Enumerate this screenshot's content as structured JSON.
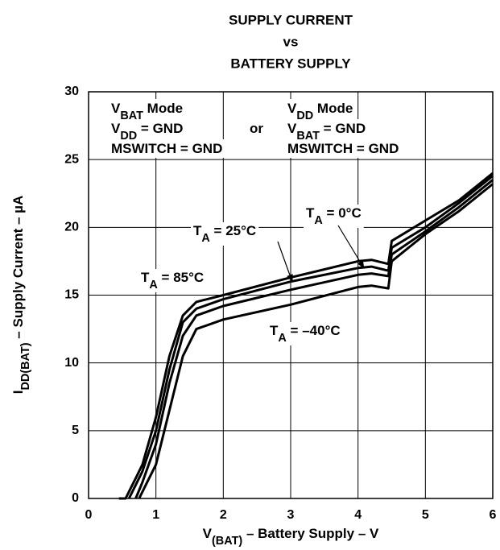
{
  "chart_data": {
    "type": "line",
    "title": [
      "SUPPLY CURRENT",
      "vs",
      "BATTERY SUPPLY"
    ],
    "xlabel": [
      "V",
      "(BAT)",
      " – Battery Supply – V"
    ],
    "ylabel": [
      "I",
      "DD(BAT)",
      " – Supply Current – µA"
    ],
    "xlim": [
      0,
      6
    ],
    "xticks": [
      0,
      1,
      2,
      3,
      4,
      5,
      6
    ],
    "ylim": [
      0,
      30
    ],
    "yticks": [
      0,
      5,
      10,
      15,
      20,
      25,
      30
    ],
    "grid": true,
    "color": "#000000",
    "annotations": [
      [
        "V",
        "BAT",
        " Mode"
      ],
      [
        "V",
        "DD",
        " = GND"
      ],
      [
        "MSWITCH = GND"
      ],
      [
        "or"
      ],
      [
        "V",
        "DD",
        " Mode"
      ],
      [
        "V",
        "BAT",
        " = GND"
      ],
      [
        "MSWITCH = GND"
      ]
    ],
    "series": [
      {
        "name": [
          "T",
          "A",
          " = 85°C"
        ],
        "color": "#000000",
        "x": [
          0.45,
          0.55,
          0.6,
          0.7,
          0.8,
          1.0,
          1.2,
          1.4,
          1.6,
          2.0,
          3.0,
          4.0,
          4.2,
          4.45,
          4.5,
          5.0,
          5.5,
          6.0
        ],
        "values": [
          0,
          0,
          0.5,
          1.5,
          2.5,
          6,
          10.5,
          13.5,
          14.5,
          15,
          16.3,
          17.5,
          17.6,
          17.3,
          19,
          20.5,
          22,
          24
        ]
      },
      {
        "name": [
          "T",
          "A",
          " = 25°C"
        ],
        "color": "#000000",
        "x": [
          0.6,
          0.7,
          0.8,
          1.0,
          1.2,
          1.4,
          1.6,
          2.0,
          3.0,
          4.0,
          4.2,
          4.45,
          4.5,
          5.0,
          5.5,
          6.0
        ],
        "values": [
          0,
          1,
          2,
          5,
          9.5,
          13,
          14,
          14.7,
          16,
          17,
          17.1,
          16.8,
          18.5,
          20,
          21.8,
          23.8
        ]
      },
      {
        "name": [
          "T",
          "A",
          " = 0°C"
        ],
        "color": "#000000",
        "x": [
          0.7,
          0.8,
          1.0,
          1.2,
          1.4,
          1.6,
          2.0,
          3.0,
          4.0,
          4.2,
          4.45,
          4.5,
          5.0,
          5.5,
          6.0
        ],
        "values": [
          0,
          1.2,
          4,
          8.5,
          12,
          13.5,
          14.2,
          15.4,
          16.5,
          16.6,
          16.4,
          18,
          19.7,
          21.5,
          23.5
        ]
      },
      {
        "name": [
          "T",
          "A",
          " = –40°C"
        ],
        "color": "#000000",
        "x": [
          0.75,
          0.85,
          1.0,
          1.2,
          1.4,
          1.6,
          2.0,
          3.0,
          4.0,
          4.2,
          4.45,
          4.5,
          5.0,
          5.5,
          6.0
        ],
        "values": [
          0,
          1,
          2.5,
          6.5,
          10.5,
          12.5,
          13.2,
          14.3,
          15.6,
          15.7,
          15.5,
          17.5,
          19.5,
          21.2,
          23.2
        ]
      }
    ]
  }
}
